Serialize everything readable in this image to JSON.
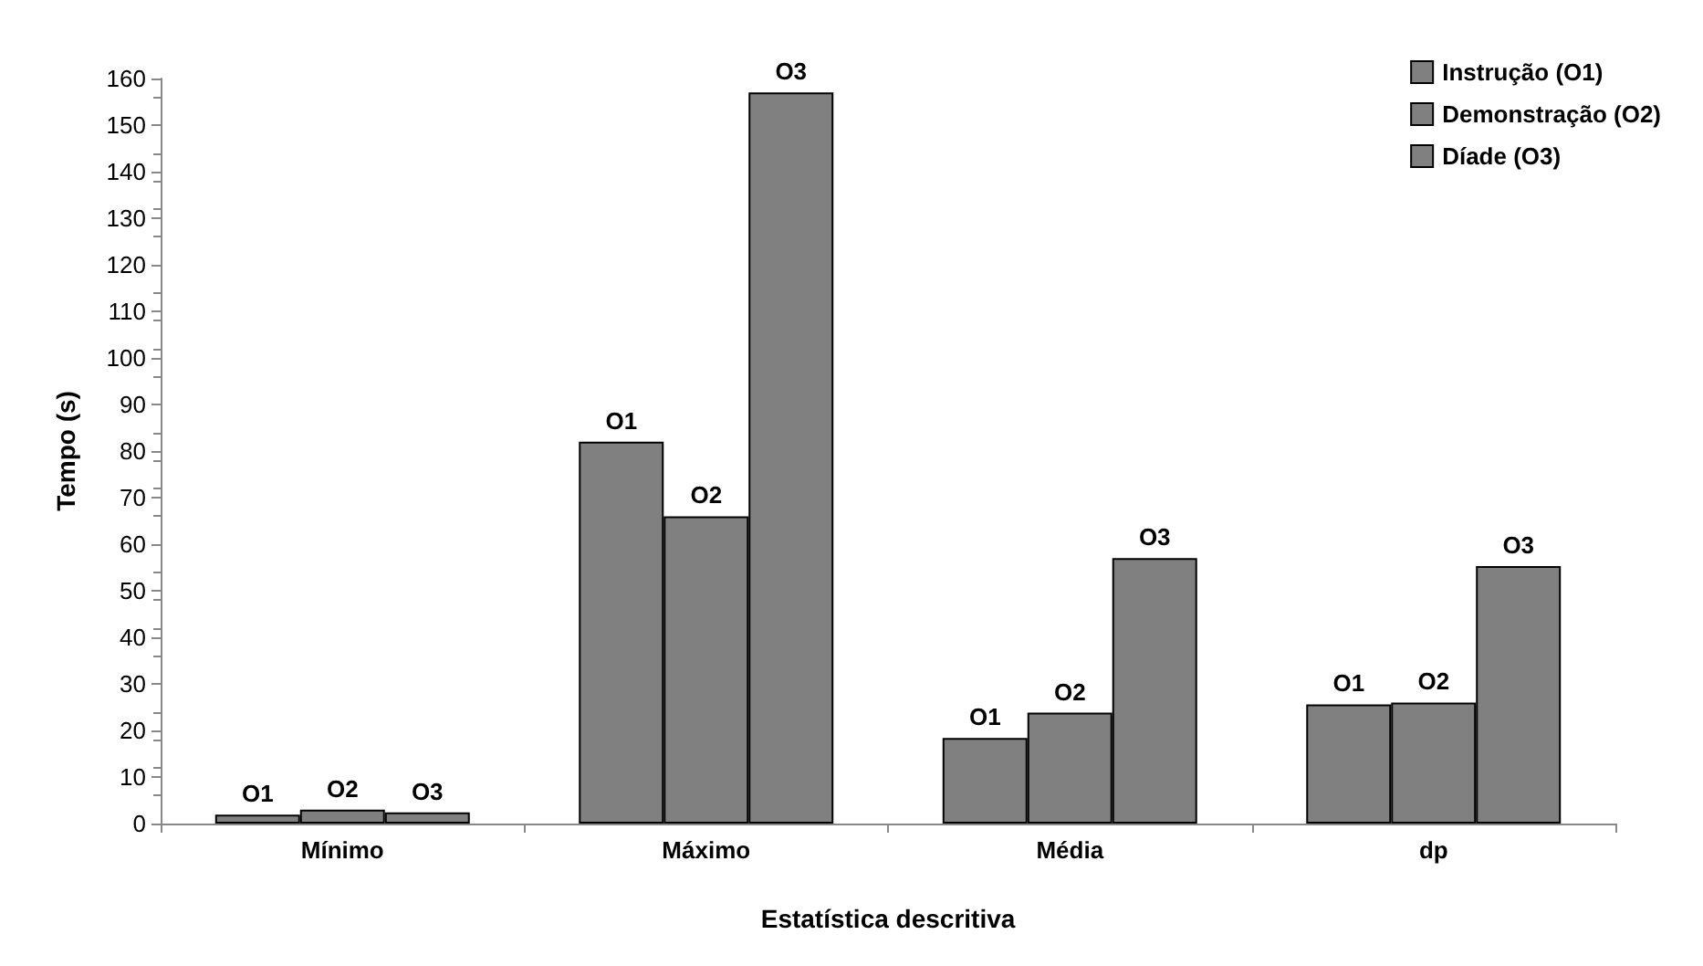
{
  "chart_data": {
    "type": "bar",
    "xlabel": "Estatística descritiva",
    "ylabel": "Tempo (s)",
    "categories": [
      "Mínimo",
      "Máximo",
      "Média",
      "dp"
    ],
    "series": [
      {
        "name": "Instrução (O1)",
        "color": "#808080",
        "values": [
          1.9,
          82,
          18.4,
          25.6
        ],
        "value_labels": [
          "O1",
          "O1",
          "O1",
          "O1"
        ]
      },
      {
        "name": "Demonstração (O2)",
        "color": "#808080",
        "values": [
          3,
          66,
          23.8,
          26
        ],
        "value_labels": [
          "O2",
          "O2",
          "O2",
          "O2"
        ]
      },
      {
        "name": "Díade (O3)",
        "color": "#808080",
        "values": [
          2.4,
          157,
          57,
          55.3
        ],
        "value_labels": [
          "O3",
          "O3",
          "O3",
          "O3"
        ]
      }
    ],
    "ylim": [
      0,
      160
    ],
    "yticks": [
      0,
      10,
      20,
      30,
      40,
      50,
      60,
      70,
      80,
      90,
      100,
      110,
      120,
      130,
      140,
      150,
      160
    ],
    "grid": false,
    "legend": "top right"
  }
}
